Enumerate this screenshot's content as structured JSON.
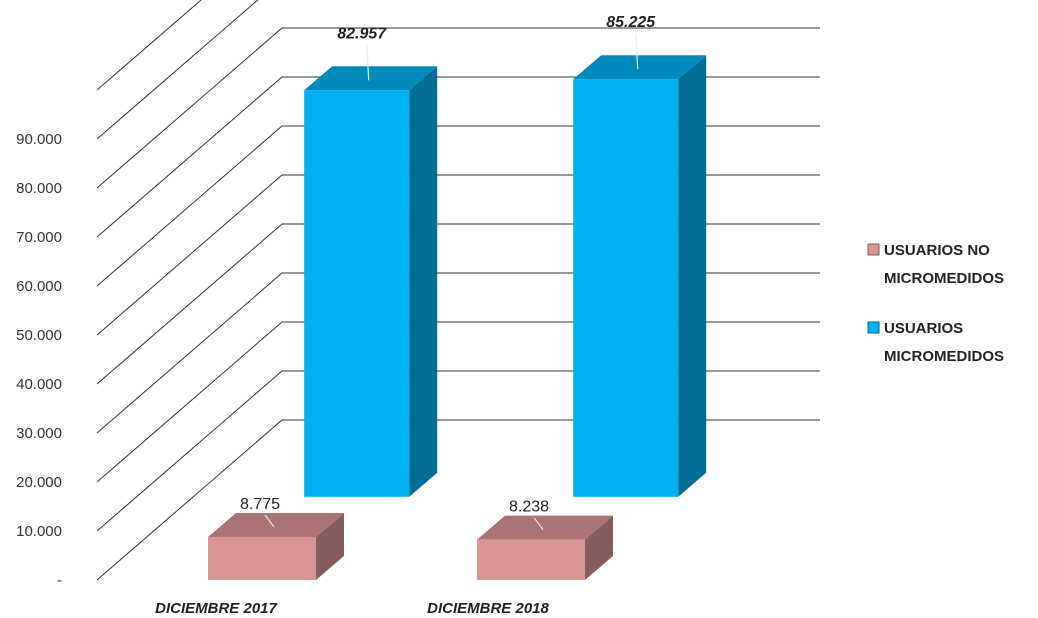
{
  "chart_data": {
    "type": "bar",
    "title": "",
    "xlabel": "",
    "ylabel": "",
    "categories": [
      "DICIEMBRE 2017",
      "DICIEMBRE 2018"
    ],
    "series": [
      {
        "name": "USUARIOS NO MICROMEDIDOS",
        "legend_lines": [
          "USUARIOS NO",
          "MICROMEDIDOS"
        ],
        "values": [
          8775,
          8238
        ],
        "value_labels": [
          "8.775",
          "8.238"
        ],
        "color": "#d99594"
      },
      {
        "name": "USUARIOS MICROMEDIDOS",
        "legend_lines": [
          "USUARIOS",
          "MICROMEDIDOS"
        ],
        "values": [
          82957,
          85225
        ],
        "value_labels": [
          "82.957",
          "85.225"
        ],
        "color": "#00b0f0"
      }
    ],
    "ylim": [
      0,
      90000
    ],
    "yticks": [
      0,
      10000,
      20000,
      30000,
      40000,
      50000,
      60000,
      70000,
      80000,
      90000
    ],
    "ytick_labels": [
      "-",
      "10.000",
      "20.000",
      "30.000",
      "40.000",
      "50.000",
      "60.000",
      "70.000",
      "80.000",
      "90.000"
    ],
    "grid": true,
    "three_d": true,
    "legend_position": "right"
  }
}
